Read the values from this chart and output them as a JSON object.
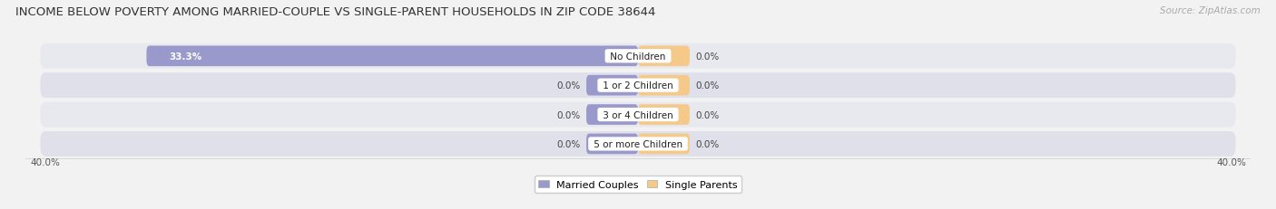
{
  "title": "INCOME BELOW POVERTY AMONG MARRIED-COUPLE VS SINGLE-PARENT HOUSEHOLDS IN ZIP CODE 38644",
  "source": "Source: ZipAtlas.com",
  "categories": [
    "No Children",
    "1 or 2 Children",
    "3 or 4 Children",
    "5 or more Children"
  ],
  "married_values": [
    33.3,
    0.0,
    0.0,
    0.0
  ],
  "single_values": [
    0.0,
    0.0,
    0.0,
    0.0
  ],
  "married_color": "#9999cc",
  "single_color": "#f5c98a",
  "axis_limit": 40.0,
  "min_bar_width": 3.5,
  "background_color": "#f2f2f2",
  "row_bg_even": "#e8e8ef",
  "row_bg_odd": "#e0e0ea",
  "title_fontsize": 9.5,
  "source_fontsize": 7.5,
  "value_fontsize": 7.5,
  "category_fontsize": 7.5,
  "legend_fontsize": 8,
  "axis_label_left": "40.0%",
  "axis_label_right": "40.0%"
}
